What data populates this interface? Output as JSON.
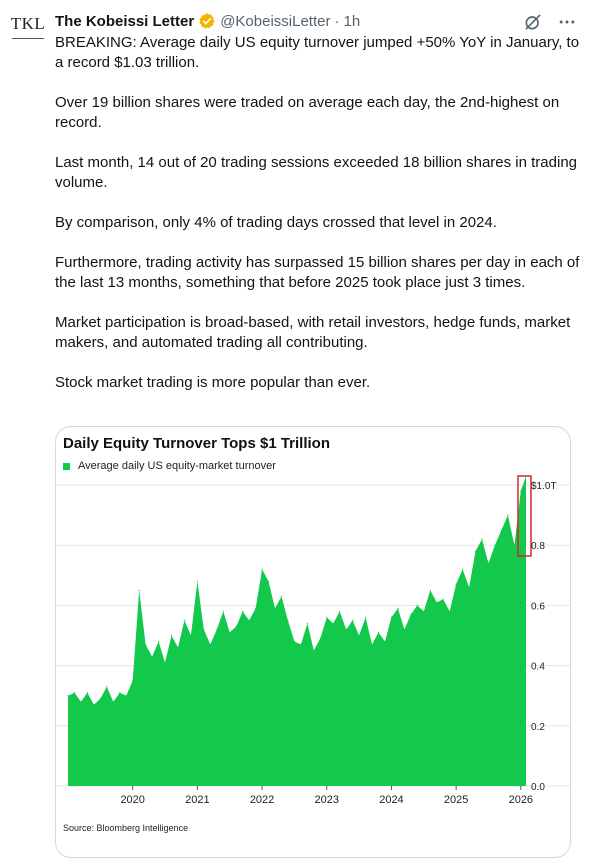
{
  "tweet": {
    "author_name": "The Kobeissi Letter",
    "handle": "@KobeissiLetter",
    "time": "1h",
    "avatar_text": "TKL",
    "paragraphs": [
      "BREAKING: Average daily US equity turnover jumped +50% YoY in January, to a record $1.03 trillion.",
      "Over 19 billion shares were traded on average each day, the 2nd-highest on record.",
      "Last month, 14 out of 20 trading sessions exceeded 18 billion shares in trading volume.",
      "By comparison, only 4% of trading days crossed that level in 2024.",
      "Furthermore, trading activity has surpassed 15 billion shares per day in each of the last 13 months, something that before 2025 took place just 3 times.",
      "Market participation is broad-based, with retail investors, hedge funds, market makers, and automated trading all contributing.",
      "Stock market trading is more popular than ever."
    ],
    "icons": [
      "verified-badge-icon",
      "grok-icon",
      "more-icon"
    ],
    "colors": {
      "verified": "#f4b400",
      "secondary_text": "#536471",
      "chart_fill": "#12c94b",
      "highlight_box": "#d62828"
    }
  },
  "chart_data": {
    "type": "area",
    "title": "Daily Equity Turnover Tops $1 Trillion",
    "legend": "Average daily US equity-market turnover",
    "source": "Source: Bloomberg Intelligence",
    "xlabel": "",
    "ylabel": "",
    "x_ticks": [
      "2020",
      "2021",
      "2022",
      "2023",
      "2024",
      "2025",
      "2026"
    ],
    "y_ticks": [
      "0.0",
      "0.2",
      "0.4",
      "0.6",
      "0.8",
      "$1.0T"
    ],
    "ylim": [
      0,
      1.0
    ],
    "grid": true,
    "y_axis_side": "right",
    "x": [
      2019.0,
      2019.1,
      2019.2,
      2019.3,
      2019.4,
      2019.5,
      2019.6,
      2019.7,
      2019.8,
      2019.9,
      2020.0,
      2020.1,
      2020.2,
      2020.3,
      2020.4,
      2020.5,
      2020.6,
      2020.7,
      2020.8,
      2020.9,
      2021.0,
      2021.1,
      2021.2,
      2021.3,
      2021.4,
      2021.5,
      2021.6,
      2021.7,
      2021.8,
      2021.9,
      2022.0,
      2022.1,
      2022.2,
      2022.3,
      2022.4,
      2022.5,
      2022.6,
      2022.7,
      2022.8,
      2022.9,
      2023.0,
      2023.1,
      2023.2,
      2023.3,
      2023.4,
      2023.5,
      2023.6,
      2023.7,
      2023.8,
      2023.9,
      2024.0,
      2024.1,
      2024.2,
      2024.3,
      2024.4,
      2024.5,
      2024.6,
      2024.7,
      2024.8,
      2024.9,
      2025.0,
      2025.1,
      2025.2,
      2025.3,
      2025.4,
      2025.5,
      2025.6,
      2025.7,
      2025.8,
      2025.9,
      2026.0,
      2026.08
    ],
    "values": [
      0.3,
      0.31,
      0.28,
      0.31,
      0.27,
      0.29,
      0.33,
      0.28,
      0.31,
      0.3,
      0.35,
      0.65,
      0.47,
      0.43,
      0.48,
      0.41,
      0.5,
      0.46,
      0.55,
      0.5,
      0.68,
      0.52,
      0.47,
      0.52,
      0.58,
      0.51,
      0.53,
      0.58,
      0.55,
      0.59,
      0.72,
      0.68,
      0.59,
      0.63,
      0.55,
      0.48,
      0.47,
      0.54,
      0.45,
      0.49,
      0.56,
      0.54,
      0.58,
      0.52,
      0.55,
      0.5,
      0.56,
      0.47,
      0.51,
      0.48,
      0.56,
      0.59,
      0.52,
      0.57,
      0.6,
      0.58,
      0.65,
      0.61,
      0.62,
      0.58,
      0.67,
      0.72,
      0.66,
      0.78,
      0.82,
      0.74,
      0.8,
      0.85,
      0.9,
      0.8,
      0.98,
      1.03
    ]
  }
}
